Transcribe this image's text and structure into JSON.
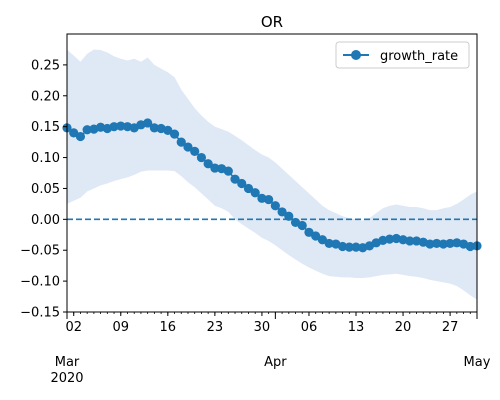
{
  "chart_data": {
    "type": "line",
    "title": "OR",
    "xlabel": "",
    "ylabel": "",
    "ylim": [
      -0.15,
      0.3
    ],
    "grid": false,
    "legend_placement": "upper-right",
    "colors": {
      "line": "#1f77b4",
      "band": "#dfe9f5",
      "zero_line": "#1f77b4"
    },
    "x_range": [
      "2020-03-01",
      "2020-05-01"
    ],
    "x_ticks": [
      {
        "date": "2020-03-02",
        "label": "02"
      },
      {
        "date": "2020-03-09",
        "label": "09"
      },
      {
        "date": "2020-03-16",
        "label": "16"
      },
      {
        "date": "2020-03-23",
        "label": "23"
      },
      {
        "date": "2020-03-30",
        "label": "30"
      },
      {
        "date": "2020-04-06",
        "label": "06"
      },
      {
        "date": "2020-04-13",
        "label": "13"
      },
      {
        "date": "2020-04-20",
        "label": "20"
      },
      {
        "date": "2020-04-27",
        "label": "27"
      }
    ],
    "x_month_labels": [
      {
        "date": "2020-03-01",
        "label": "Mar",
        "sublabel": "2020"
      },
      {
        "date": "2020-04-01",
        "label": "Apr",
        "sublabel": ""
      },
      {
        "date": "2020-05-01",
        "label": "May",
        "sublabel": ""
      }
    ],
    "y_ticks": [
      -0.15,
      -0.1,
      -0.05,
      0.0,
      0.05,
      0.1,
      0.15,
      0.2,
      0.25
    ],
    "y_tick_labels": [
      "−0.15",
      "−0.10",
      "−0.05",
      "0.00",
      "0.05",
      "0.10",
      "0.15",
      "0.20",
      "0.25"
    ],
    "reference_line": {
      "y": 0.0,
      "style": "dashed"
    },
    "series": [
      {
        "name": "growth_rate",
        "x": [
          "2020-03-01",
          "2020-03-02",
          "2020-03-03",
          "2020-03-04",
          "2020-03-05",
          "2020-03-06",
          "2020-03-07",
          "2020-03-08",
          "2020-03-09",
          "2020-03-10",
          "2020-03-11",
          "2020-03-12",
          "2020-03-13",
          "2020-03-14",
          "2020-03-15",
          "2020-03-16",
          "2020-03-17",
          "2020-03-18",
          "2020-03-19",
          "2020-03-20",
          "2020-03-21",
          "2020-03-22",
          "2020-03-23",
          "2020-03-24",
          "2020-03-25",
          "2020-03-26",
          "2020-03-27",
          "2020-03-28",
          "2020-03-29",
          "2020-03-30",
          "2020-03-31",
          "2020-04-01",
          "2020-04-02",
          "2020-04-03",
          "2020-04-04",
          "2020-04-05",
          "2020-04-06",
          "2020-04-07",
          "2020-04-08",
          "2020-04-09",
          "2020-04-10",
          "2020-04-11",
          "2020-04-12",
          "2020-04-13",
          "2020-04-14",
          "2020-04-15",
          "2020-04-16",
          "2020-04-17",
          "2020-04-18",
          "2020-04-19",
          "2020-04-20",
          "2020-04-21",
          "2020-04-22",
          "2020-04-23",
          "2020-04-24",
          "2020-04-25",
          "2020-04-26",
          "2020-04-27",
          "2020-04-28",
          "2020-04-29",
          "2020-04-30",
          "2020-05-01"
        ],
        "y": [
          0.148,
          0.14,
          0.134,
          0.145,
          0.146,
          0.149,
          0.147,
          0.15,
          0.151,
          0.15,
          0.148,
          0.153,
          0.156,
          0.148,
          0.147,
          0.144,
          0.138,
          0.125,
          0.117,
          0.11,
          0.1,
          0.09,
          0.083,
          0.082,
          0.078,
          0.065,
          0.058,
          0.05,
          0.043,
          0.034,
          0.032,
          0.022,
          0.012,
          0.005,
          -0.005,
          -0.01,
          -0.021,
          -0.027,
          -0.033,
          -0.039,
          -0.04,
          -0.044,
          -0.045,
          -0.045,
          -0.046,
          -0.043,
          -0.038,
          -0.034,
          -0.032,
          -0.031,
          -0.033,
          -0.035,
          -0.035,
          -0.037,
          -0.04,
          -0.039,
          -0.04,
          -0.039,
          -0.038,
          -0.04,
          -0.044,
          -0.043
        ],
        "lower": [
          0.025,
          0.03,
          0.035,
          0.045,
          0.05,
          0.055,
          0.058,
          0.062,
          0.065,
          0.068,
          0.072,
          0.077,
          0.079,
          0.079,
          0.079,
          0.079,
          0.078,
          0.07,
          0.06,
          0.052,
          0.042,
          0.032,
          0.022,
          0.018,
          0.012,
          0.0,
          -0.008,
          -0.015,
          -0.022,
          -0.03,
          -0.035,
          -0.042,
          -0.05,
          -0.058,
          -0.065,
          -0.072,
          -0.078,
          -0.083,
          -0.088,
          -0.092,
          -0.093,
          -0.094,
          -0.094,
          -0.095,
          -0.095,
          -0.094,
          -0.092,
          -0.09,
          -0.089,
          -0.088,
          -0.09,
          -0.092,
          -0.093,
          -0.095,
          -0.098,
          -0.1,
          -0.102,
          -0.104,
          -0.108,
          -0.115,
          -0.123,
          -0.13
        ],
        "upper": [
          0.275,
          0.265,
          0.255,
          0.268,
          0.275,
          0.274,
          0.27,
          0.264,
          0.26,
          0.257,
          0.26,
          0.255,
          0.262,
          0.25,
          0.244,
          0.238,
          0.23,
          0.21,
          0.195,
          0.18,
          0.168,
          0.158,
          0.15,
          0.146,
          0.142,
          0.135,
          0.128,
          0.12,
          0.112,
          0.105,
          0.1,
          0.092,
          0.082,
          0.072,
          0.062,
          0.052,
          0.042,
          0.032,
          0.022,
          0.015,
          0.01,
          0.005,
          0.002,
          0.0,
          -0.002,
          0.002,
          0.01,
          0.018,
          0.022,
          0.024,
          0.022,
          0.02,
          0.02,
          0.018,
          0.015,
          0.015,
          0.018,
          0.02,
          0.025,
          0.032,
          0.04,
          0.045
        ]
      }
    ]
  }
}
